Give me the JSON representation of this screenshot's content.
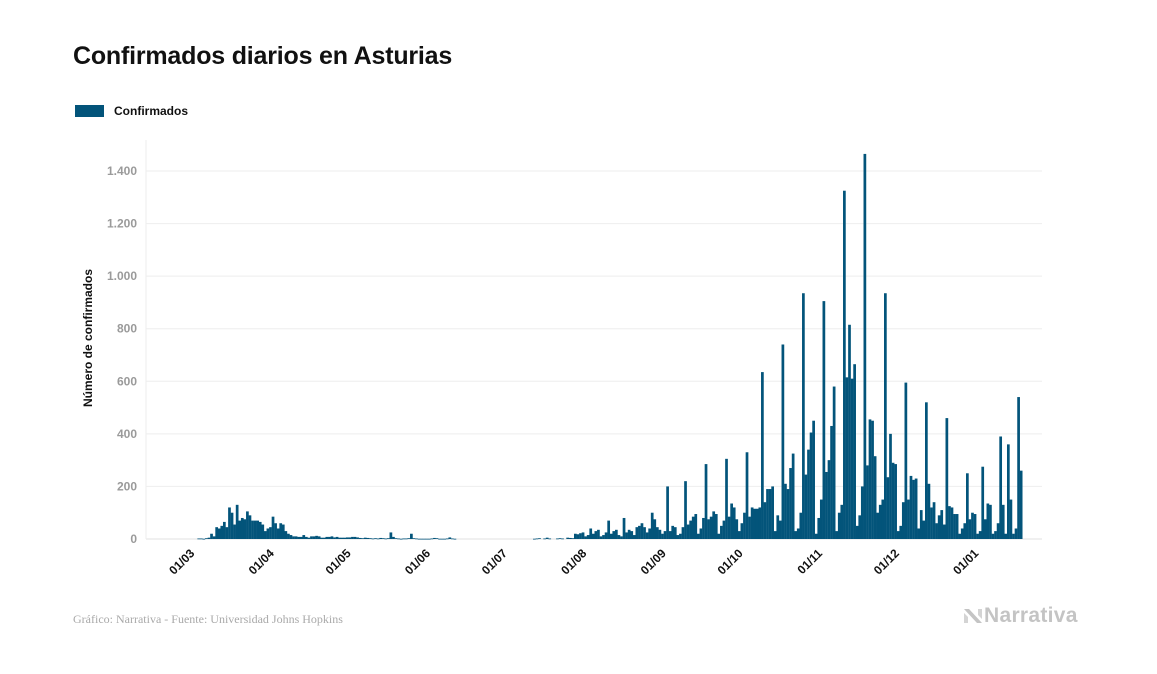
{
  "header": {
    "title": "Confirmados diarios en Asturias"
  },
  "legend": {
    "items": [
      {
        "label": "Confirmados",
        "color": "#03547a"
      }
    ]
  },
  "footer": {
    "source": "Gráfico: Narrativa - Fuente: Universidad Johns Hopkins",
    "brand": "Narrativa",
    "brand_icon": "narrativa-logo-icon"
  },
  "chart_data": {
    "type": "bar",
    "title": "Confirmados diarios en Asturias",
    "xlabel": "",
    "ylabel": "Número de confirmados",
    "ylim": [
      0,
      1500
    ],
    "yticks": [
      0,
      200,
      400,
      600,
      800,
      1000,
      1200,
      1400
    ],
    "ytick_labels": [
      "0",
      "200",
      "400",
      "600",
      "800",
      "1.000",
      "1.200",
      "1.400"
    ],
    "grid": true,
    "legend_position": "top-left",
    "bar_color": "#03547a",
    "start_date": "2020-02-24",
    "xticks": [
      {
        "label": "01/03",
        "day_index": 6
      },
      {
        "label": "01/04",
        "day_index": 37
      },
      {
        "label": "01/05",
        "day_index": 67
      },
      {
        "label": "01/06",
        "day_index": 98
      },
      {
        "label": "01/07",
        "day_index": 128
      },
      {
        "label": "01/08",
        "day_index": 159
      },
      {
        "label": "01/09",
        "day_index": 190
      },
      {
        "label": "01/10",
        "day_index": 220
      },
      {
        "label": "01/11",
        "day_index": 251
      },
      {
        "label": "01/12",
        "day_index": 281
      },
      {
        "label": "01/01",
        "day_index": 312
      }
    ],
    "series": [
      {
        "name": "Confirmados",
        "values": [
          0,
          0,
          0,
          0,
          0,
          0,
          0,
          0,
          0,
          0,
          0,
          0,
          2,
          2,
          1,
          3,
          5,
          20,
          10,
          45,
          40,
          50,
          65,
          45,
          120,
          100,
          55,
          130,
          70,
          80,
          75,
          105,
          90,
          70,
          70,
          70,
          65,
          55,
          30,
          40,
          45,
          85,
          60,
          40,
          60,
          55,
          30,
          20,
          15,
          10,
          10,
          8,
          8,
          15,
          8,
          5,
          10,
          10,
          12,
          10,
          5,
          5,
          8,
          8,
          10,
          6,
          8,
          5,
          5,
          5,
          6,
          6,
          8,
          8,
          6,
          4,
          3,
          5,
          4,
          3,
          2,
          3,
          2,
          4,
          3,
          2,
          3,
          25,
          8,
          3,
          2,
          1,
          2,
          2,
          3,
          20,
          3,
          2,
          1,
          1,
          1,
          1,
          1,
          2,
          4,
          3,
          1,
          1,
          1,
          2,
          6,
          2,
          1,
          0,
          0,
          0,
          0,
          0,
          0,
          0,
          0,
          0,
          0,
          0,
          0,
          0,
          0,
          0,
          0,
          0,
          0,
          0,
          0,
          0,
          0,
          0,
          0,
          0,
          0,
          0,
          0,
          0,
          0,
          1,
          2,
          3,
          0,
          2,
          5,
          2,
          0,
          0,
          2,
          3,
          2,
          0,
          5,
          4,
          3,
          20,
          18,
          22,
          25,
          10,
          15,
          40,
          20,
          30,
          35,
          10,
          15,
          25,
          70,
          20,
          30,
          35,
          15,
          10,
          80,
          25,
          35,
          30,
          15,
          45,
          50,
          60,
          45,
          25,
          40,
          100,
          75,
          45,
          35,
          20,
          30,
          200,
          30,
          50,
          45,
          15,
          20,
          45,
          220,
          55,
          70,
          85,
          95,
          20,
          40,
          80,
          285,
          75,
          85,
          105,
          95,
          20,
          50,
          70,
          305,
          85,
          135,
          120,
          75,
          30,
          60,
          100,
          330,
          85,
          120,
          115,
          115,
          120,
          635,
          140,
          190,
          190,
          200,
          30,
          90,
          70,
          740,
          210,
          190,
          270,
          325,
          30,
          40,
          100,
          935,
          245,
          340,
          405,
          450,
          20,
          80,
          150,
          905,
          255,
          300,
          430,
          580,
          30,
          100,
          130,
          1325,
          615,
          815,
          610,
          665,
          50,
          90,
          200,
          1465,
          280,
          455,
          450,
          315,
          100,
          130,
          150,
          935,
          235,
          400,
          290,
          285,
          30,
          50,
          140,
          595,
          150,
          240,
          225,
          230,
          40,
          110,
          70,
          520,
          210,
          120,
          140,
          60,
          90,
          110,
          55,
          460,
          125,
          120,
          95,
          95,
          20,
          40,
          60,
          250,
          75,
          100,
          95,
          20,
          30,
          275,
          75,
          135,
          130,
          20,
          30,
          60,
          390,
          130,
          20,
          360,
          150,
          20,
          40,
          540,
          260
        ]
      }
    ]
  }
}
